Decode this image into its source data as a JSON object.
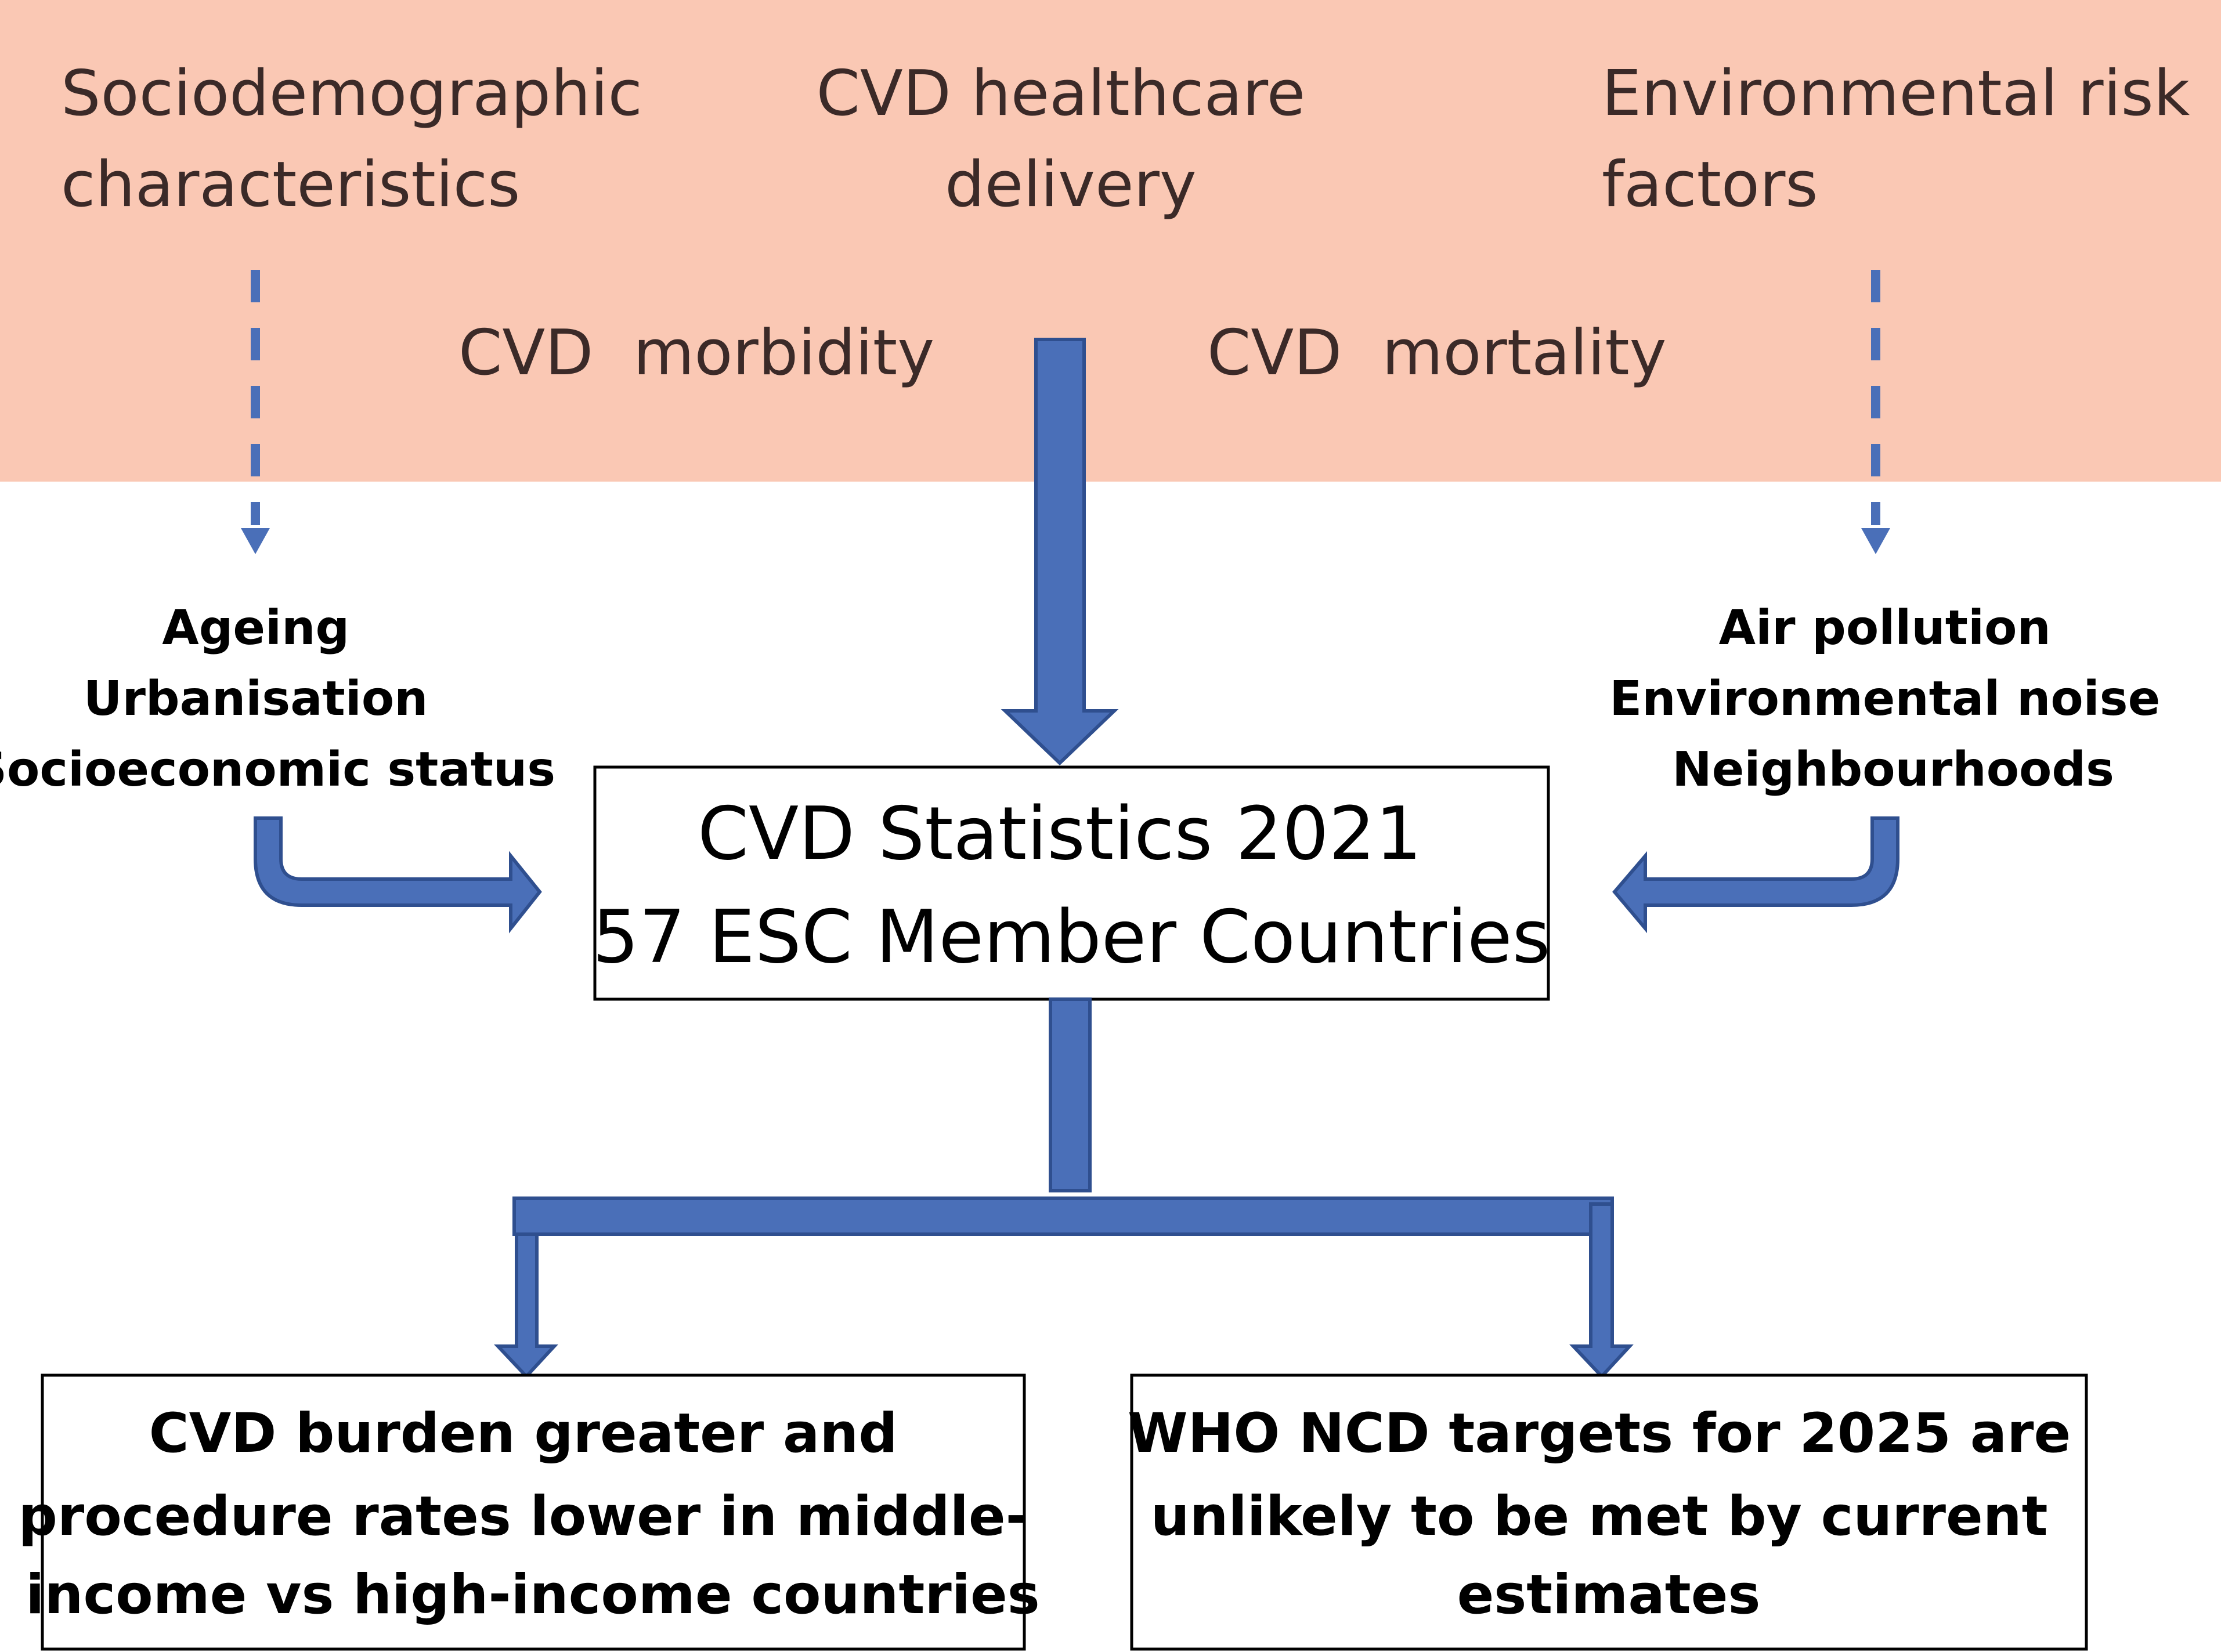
{
  "colors": {
    "header_band": "#fac8b4",
    "header_text": "#3b2a28",
    "arrow_fill": "#4a6fb8",
    "arrow_stroke": "#2f4f8f",
    "box_border": "#000000"
  },
  "header": {
    "sociodemographic": [
      "Sociodemographic",
      "characteristics"
    ],
    "healthcare_delivery": [
      "CVD healthcare",
      "delivery"
    ],
    "environmental": [
      "Environmental risk",
      "factors"
    ],
    "morbidity": "CVD  morbidity",
    "mortality": "CVD  mortality"
  },
  "left_factors": [
    "Ageing",
    "Urbanisation",
    "Socioeconomic status"
  ],
  "right_factors": [
    "Air pollution",
    "Environmental noise",
    "Neighbourhoods"
  ],
  "center_box": [
    "CVD Statistics 2021",
    "57 ESC Member Countries"
  ],
  "outcomes": {
    "left": [
      "CVD burden greater and",
      "procedure rates lower in middle-",
      "income vs high-income countries"
    ],
    "right": [
      "WHO NCD targets for 2025 are",
      "unlikely to be met by current",
      "estimates"
    ]
  },
  "icons": {
    "dashed_arrow": "dashed-arrow-down-icon",
    "block_arrow": "block-arrow-icon",
    "bent_arrow": "bent-arrow-icon"
  }
}
